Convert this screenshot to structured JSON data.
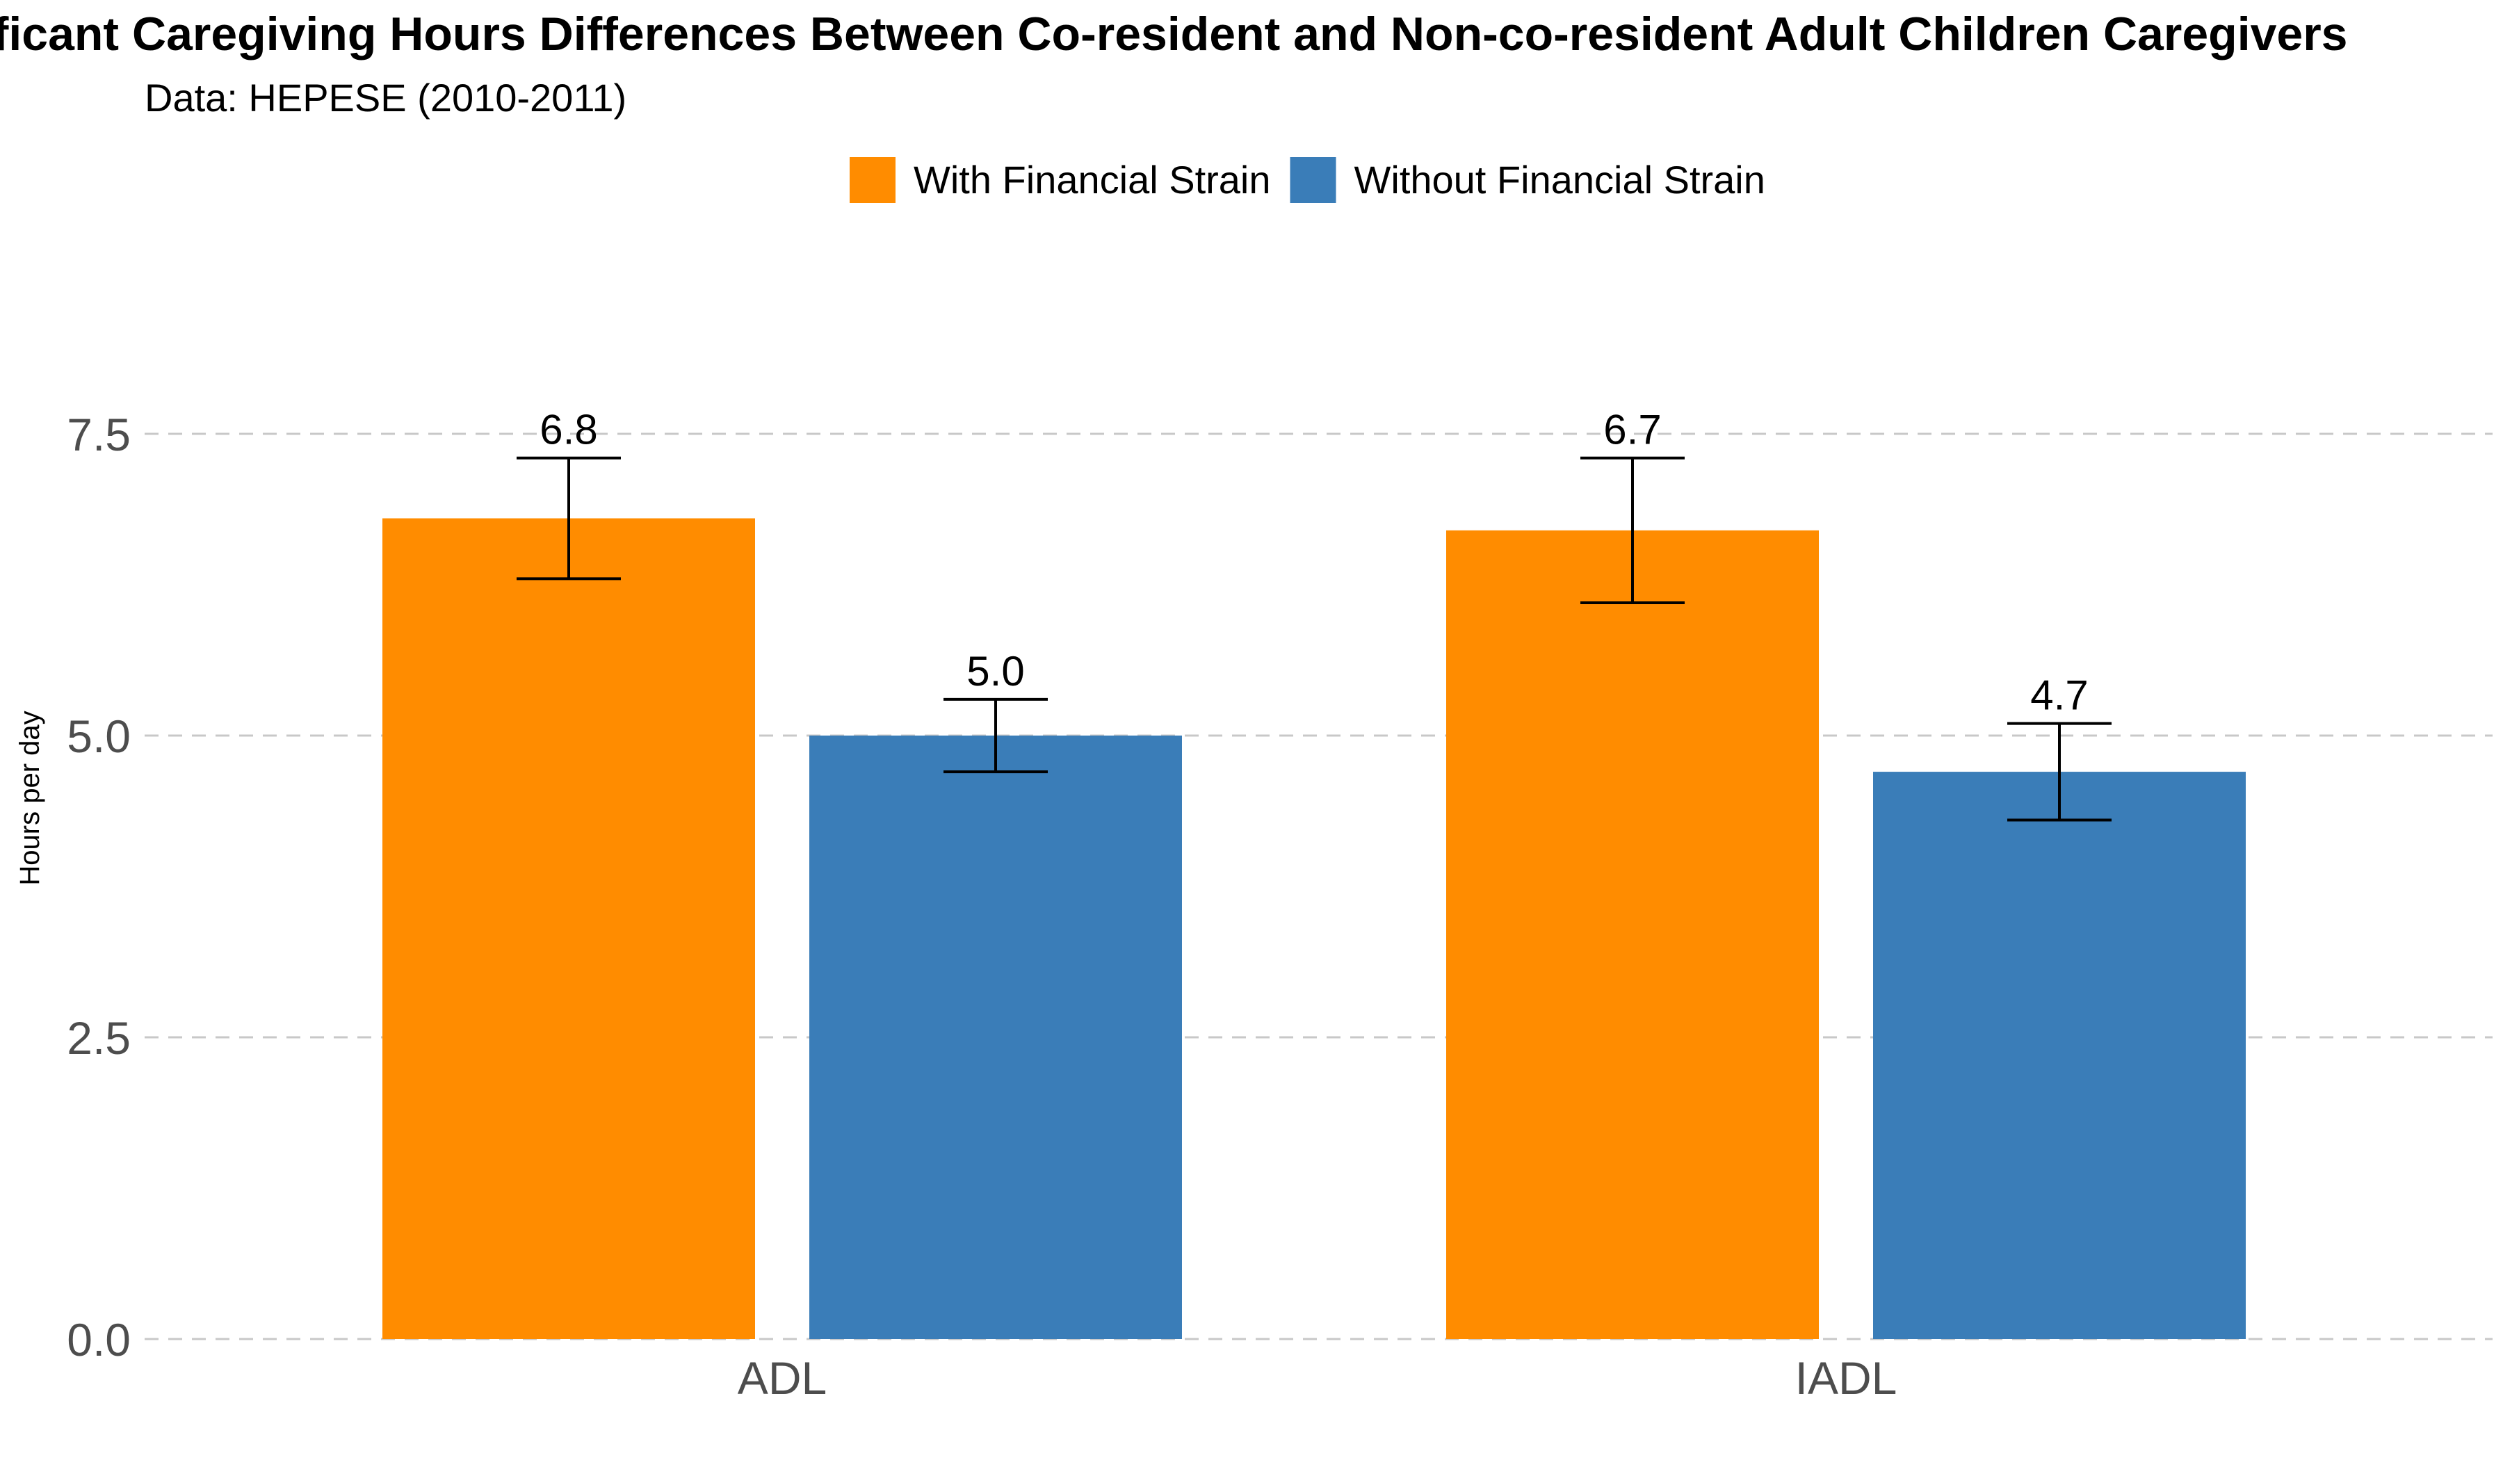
{
  "chart_data": {
    "type": "bar",
    "title": "Significant Caregiving Hours Differences Between Co-resident and Non-co-resident Adult Children Caregivers",
    "subtitle": "Data: HEPESE (2010-2011)",
    "xlabel": "",
    "ylabel": "Hours per day",
    "categories": [
      "ADL",
      "IADL"
    ],
    "ylim": [
      0,
      7.9
    ],
    "yticks": [
      0.0,
      2.5,
      5.0,
      7.5
    ],
    "ytick_labels": [
      "0.0",
      "2.5",
      "5.0",
      "7.5"
    ],
    "grid": "horizontal dashed",
    "legend_position": "top",
    "series": [
      {
        "name": "With Financial Strain",
        "color": "#FF8C00",
        "values": [
          6.8,
          6.7
        ],
        "error_low": [
          6.3,
          6.1
        ],
        "error_high": [
          7.3,
          7.3
        ],
        "labels": [
          "6.8",
          "6.7"
        ]
      },
      {
        "name": "Without Financial Strain",
        "color": "#3A7DB8",
        "values": [
          5.0,
          4.7
        ],
        "error_low": [
          4.7,
          4.3
        ],
        "error_high": [
          5.3,
          5.1
        ],
        "labels": [
          "5.0",
          "4.7"
        ]
      }
    ]
  }
}
